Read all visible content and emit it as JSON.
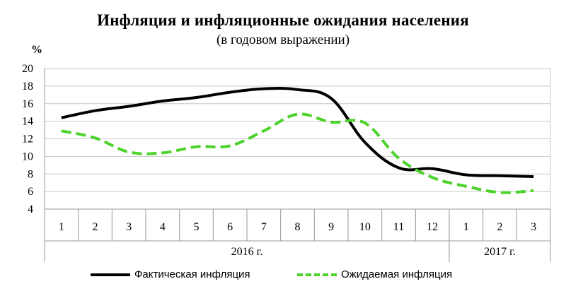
{
  "chart_data": {
    "type": "line",
    "title": "Инфляция и инфляционные ожидания населения",
    "subtitle": "(в годовом выражении)",
    "ylabel": "%",
    "ylim": [
      4,
      20
    ],
    "yticks": [
      4,
      6,
      8,
      10,
      12,
      14,
      16,
      18,
      20
    ],
    "grid": true,
    "categories": [
      "1",
      "2",
      "3",
      "4",
      "5",
      "6",
      "7",
      "8",
      "9",
      "10",
      "11",
      "12",
      "1",
      "2",
      "3"
    ],
    "groups": [
      {
        "label": "2016 г.",
        "count": 12
      },
      {
        "label": "2017 г.",
        "count": 3
      }
    ],
    "series": [
      {
        "name": "Фактическая инфляция",
        "color": "#000000",
        "style": "solid",
        "values": [
          14.4,
          15.2,
          15.7,
          16.3,
          16.7,
          17.3,
          17.7,
          17.6,
          16.6,
          11.6,
          8.7,
          8.6,
          7.9,
          7.8,
          7.7
        ]
      },
      {
        "name": "Ожидаемая инфляция",
        "color": "#4cd32a",
        "style": "dashed",
        "values": [
          12.9,
          12.1,
          10.5,
          10.4,
          11.1,
          11.2,
          12.9,
          14.8,
          13.9,
          13.8,
          9.8,
          7.6,
          6.6,
          5.9,
          6.1
        ]
      }
    ],
    "legend_position": "bottom"
  }
}
